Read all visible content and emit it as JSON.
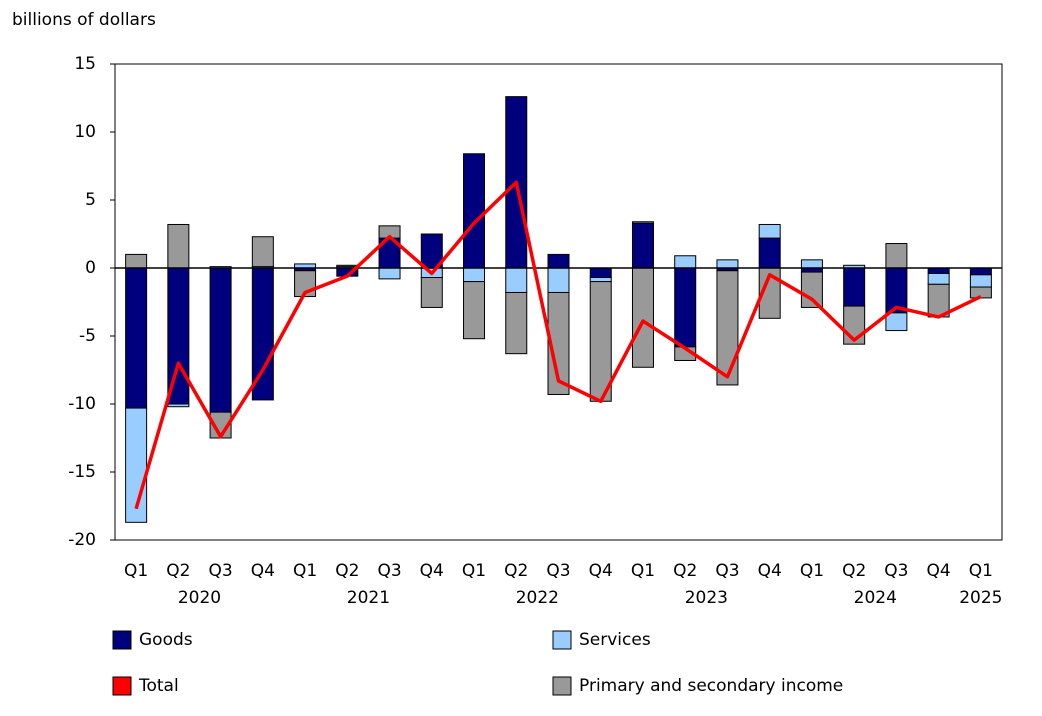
{
  "chart_data": {
    "type": "bar",
    "y_axis_title": "billions of dollars",
    "categories": [
      "Q1",
      "Q2",
      "Q3",
      "Q4",
      "Q1",
      "Q2",
      "Q3",
      "Q4",
      "Q1",
      "Q2",
      "Q3",
      "Q4",
      "Q1",
      "Q2",
      "Q3",
      "Q4",
      "Q1",
      "Q2",
      "Q3",
      "Q4",
      "Q1"
    ],
    "years": [
      "2020",
      "2021",
      "2022",
      "2023",
      "2024",
      "2025"
    ],
    "series": [
      {
        "name": "Goods",
        "color": "#00007f",
        "values": [
          -10.3,
          -10.0,
          -10.6,
          -9.7,
          -0.2,
          -0.6,
          2.2,
          2.5,
          8.4,
          12.6,
          1.0,
          -0.7,
          3.3,
          -5.8,
          -0.2,
          2.2,
          -0.3,
          -2.8,
          -3.3,
          -0.4,
          -0.5
        ]
      },
      {
        "name": "Services",
        "color": "#99ccff",
        "values": [
          -8.4,
          -0.2,
          0.1,
          0.1,
          0.3,
          0.1,
          -0.8,
          -0.7,
          -1.0,
          -1.8,
          -1.8,
          -0.3,
          0.1,
          0.9,
          0.6,
          1.0,
          0.6,
          0.2,
          -1.3,
          -0.8,
          -0.9
        ]
      },
      {
        "name": "Total",
        "type": "line",
        "color": "#ff0000",
        "values": [
          -17.7,
          -7.0,
          -12.4,
          -7.5,
          -1.8,
          -0.6,
          2.3,
          -0.4,
          3.3,
          6.3,
          -8.3,
          -9.8,
          -3.9,
          -5.9,
          -8.0,
          -0.5,
          -2.3,
          -5.3,
          -2.9,
          -3.6,
          -2.1
        ]
      },
      {
        "name": "Primary and secondary income",
        "color": "#999999",
        "values": [
          1.0,
          3.2,
          -1.9,
          2.2,
          -1.9,
          0.1,
          0.9,
          -2.2,
          -4.2,
          -4.5,
          -7.5,
          -8.8,
          -7.3,
          -1.0,
          -8.4,
          -3.7,
          -2.6,
          -2.8,
          1.8,
          -2.4,
          -0.8
        ]
      }
    ],
    "ylim": [
      -20,
      15
    ],
    "yticks": [
      -20,
      -15,
      -10,
      -5,
      0,
      5,
      10,
      15
    ],
    "grid": false
  }
}
